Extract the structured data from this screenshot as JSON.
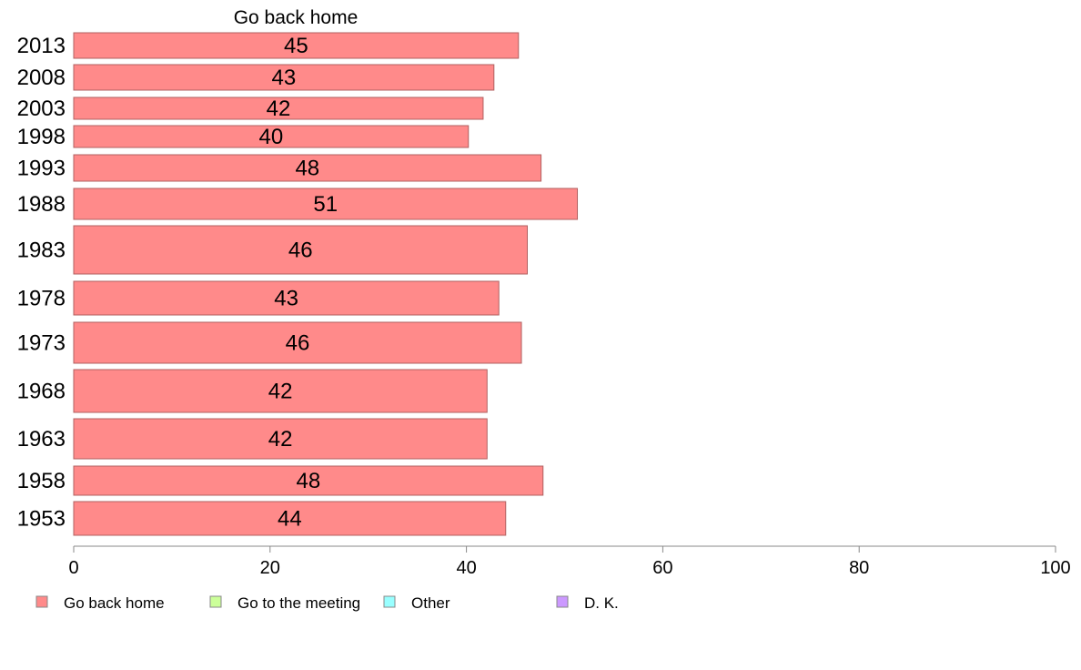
{
  "chart_data": {
    "type": "bar",
    "orientation": "horizontal",
    "title": "Go back home",
    "categories": [
      "2013",
      "2008",
      "2003",
      "1998",
      "1993",
      "1988",
      "1983",
      "1978",
      "1973",
      "1968",
      "1963",
      "1958",
      "1953"
    ],
    "series": [
      {
        "name": "Go back home",
        "color": "#ff8a8a",
        "values": [
          45.3,
          42.8,
          41.7,
          40.2,
          47.6,
          51.3,
          46.2,
          43.3,
          45.6,
          42.1,
          42.1,
          47.8,
          44.0
        ],
        "labels": [
          "45",
          "43",
          "42",
          "40",
          "48",
          "51",
          "46",
          "43",
          "46",
          "42",
          "42",
          "48",
          "44"
        ]
      }
    ],
    "xlim": [
      0,
      100
    ],
    "xticks": [
      "0",
      "20",
      "40",
      "60",
      "80",
      "100"
    ],
    "legend": {
      "placement": "bottom",
      "items": [
        {
          "label": "Go back home",
          "color": "#ff8a8a"
        },
        {
          "label": "Go to the meeting",
          "color": "#ccff99"
        },
        {
          "label": "Other",
          "color": "#99ffff"
        },
        {
          "label": "D. K.",
          "color": "#cc99ff"
        }
      ]
    },
    "grid": false
  }
}
